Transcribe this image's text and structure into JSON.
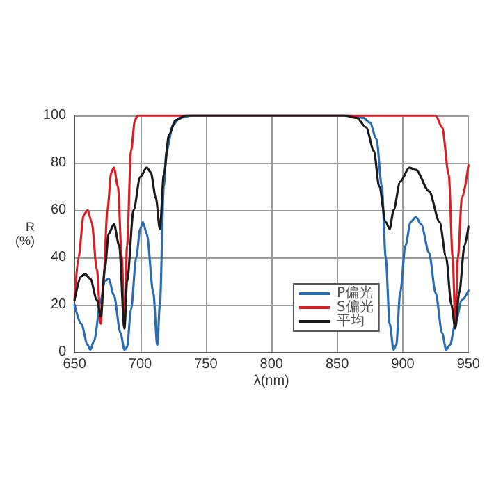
{
  "chart_data": {
    "type": "line",
    "xlabel": "λ(nm)",
    "ylabel": "R\n(%)",
    "xlim": [
      650,
      950
    ],
    "xticks": [
      650,
      700,
      750,
      800,
      850,
      900,
      950
    ],
    "ylim": [
      0,
      100
    ],
    "yticks": [
      0,
      20,
      40,
      60,
      80,
      100
    ],
    "grid": true,
    "legend": "bottom right",
    "marker": "none",
    "line_style": "solid",
    "series": [
      {
        "name": "P偏光",
        "color": "#2a6db5",
        "x": [
          650,
          655,
          660,
          662,
          665,
          670,
          673,
          676,
          680,
          685,
          688,
          690,
          693,
          697,
          700,
          702,
          705,
          710,
          713,
          715,
          718,
          720,
          725,
          730,
          740,
          860,
          870,
          875,
          880,
          884,
          887,
          890,
          893,
          895,
          898,
          902,
          906,
          910,
          914,
          920,
          925,
          930,
          933,
          936,
          940,
          945,
          950
        ],
        "values": [
          20,
          12,
          3,
          1,
          5,
          22,
          30,
          31,
          24,
          8,
          1,
          2,
          18,
          40,
          52,
          55,
          50,
          25,
          3,
          20,
          70,
          85,
          96,
          99,
          100,
          100,
          99,
          97,
          90,
          70,
          40,
          12,
          1,
          3,
          25,
          45,
          55,
          57,
          54,
          42,
          25,
          8,
          1,
          3,
          12,
          22,
          26
        ]
      },
      {
        "name": "S偏光",
        "color": "#d62027",
        "x": [
          650,
          653,
          657,
          660,
          663,
          667,
          670,
          672,
          675,
          678,
          680,
          683,
          686,
          688,
          690,
          693,
          696,
          698,
          925,
          930,
          935,
          938,
          940,
          942,
          945,
          950
        ],
        "values": [
          22,
          40,
          58,
          60,
          55,
          35,
          12,
          30,
          60,
          76,
          78,
          70,
          40,
          10,
          45,
          85,
          98,
          100,
          100,
          95,
          75,
          40,
          12,
          40,
          65,
          79
        ]
      },
      {
        "name": "平均",
        "color": "#1a1a1a",
        "x": [
          650,
          655,
          658,
          662,
          667,
          670,
          673,
          676,
          680,
          684,
          688,
          690,
          695,
          700,
          705,
          708,
          712,
          715,
          718,
          722,
          727,
          735,
          855,
          865,
          872,
          878,
          882,
          887,
          890,
          893,
          898,
          905,
          910,
          920,
          928,
          933,
          937,
          940,
          943,
          947,
          950
        ],
        "values": [
          22,
          32,
          33,
          31,
          22,
          15,
          35,
          50,
          54,
          45,
          10,
          30,
          60,
          74,
          78,
          76,
          65,
          52,
          75,
          92,
          98,
          100,
          100,
          99,
          95,
          85,
          70,
          55,
          52,
          60,
          72,
          78,
          77,
          68,
          55,
          40,
          20,
          10,
          25,
          45,
          53
        ]
      }
    ]
  }
}
